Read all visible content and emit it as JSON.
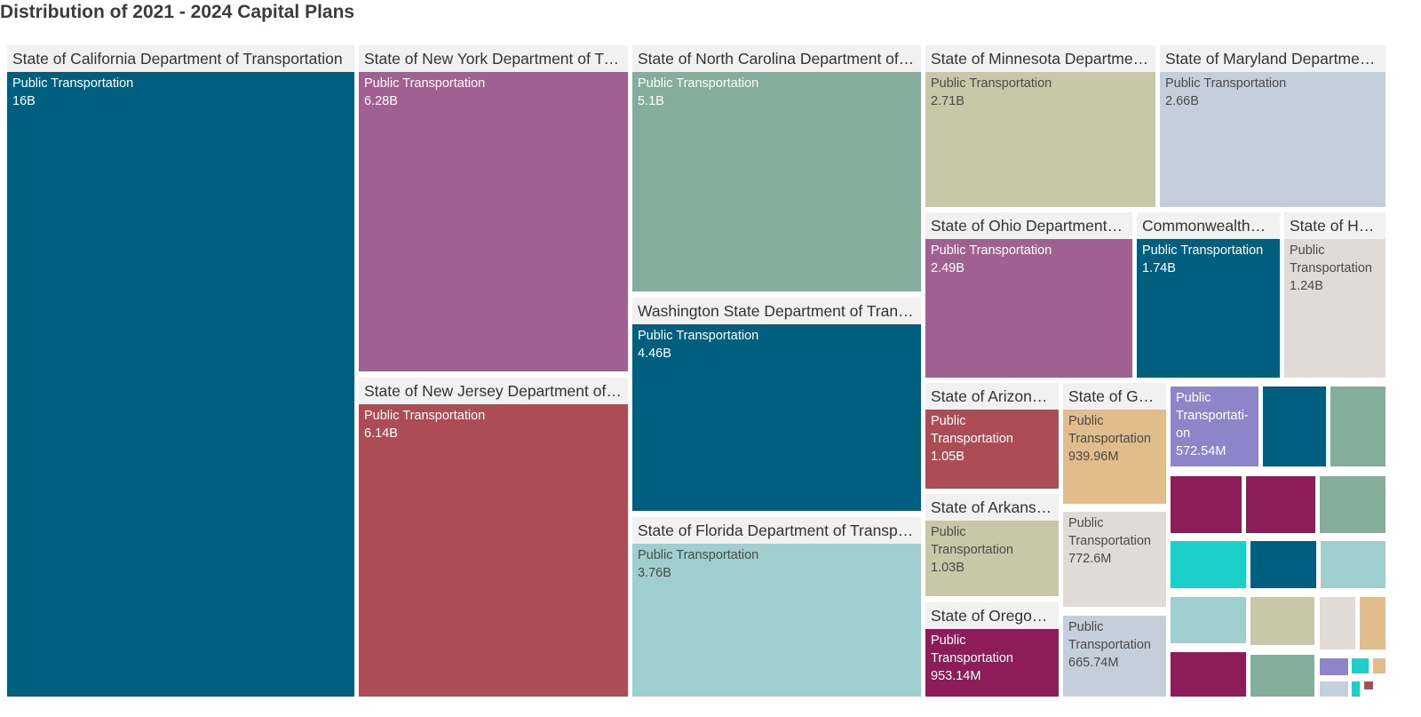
{
  "chart_title": "Distribution of 2021 - 2024 Capital Plans",
  "chart_data": {
    "type": "treemap",
    "title": "Distribution of 2021 - 2024 Capital Plans",
    "groups": [
      {
        "name": "State of California Department of Transportation",
        "header": "State of California Department of Transportation",
        "category": "Public Transportation",
        "value": 16000000000,
        "value_label": "16B",
        "color": "#005f7f",
        "text_color": "#ffffff"
      },
      {
        "name": "State of New York Department of Transportation",
        "header": "State of New York Department of Tr…",
        "category": "Public Transportation",
        "value": 6280000000,
        "value_label": "6.28B",
        "color": "#a06192",
        "text_color": "#ffffff"
      },
      {
        "name": "State of New Jersey Department of Transportation",
        "header": "State of New Jersey Department of…",
        "category": "Public Transportation",
        "value": 6140000000,
        "value_label": "6.14B",
        "color": "#ac4d56",
        "text_color": "#ffffff"
      },
      {
        "name": "State of North Carolina Department of Transportation",
        "header": "State of North Carolina Department of…",
        "category": "Public Transportation",
        "value": 5100000000,
        "value_label": "5.1B",
        "color": "#84ae9b",
        "text_color": "#ffffff"
      },
      {
        "name": "Washington State Department of Transportation",
        "header": "Washington State Department of Tran…",
        "category": "Public Transportation",
        "value": 4460000000,
        "value_label": "4.46B",
        "color": "#005f7f",
        "text_color": "#ffffff"
      },
      {
        "name": "State of Florida Department of Transportation",
        "header": "State of Florida Department of Transp…",
        "category": "Public Transportation",
        "value": 3760000000,
        "value_label": "3.76B",
        "color": "#9ecfce",
        "text_color": "#4a4a4a"
      },
      {
        "name": "State of Minnesota Department of Transportation",
        "header": "State of Minnesota Departme…",
        "category": "Public Transportation",
        "value": 2710000000,
        "value_label": "2.71B",
        "color": "#c8c8a8",
        "text_color": "#4a4a4a"
      },
      {
        "name": "State of Maryland Department of Transportation",
        "header": "State of Maryland Departme…",
        "category": "Public Transportation",
        "value": 2660000000,
        "value_label": "2.66B",
        "color": "#c4cfdb",
        "text_color": "#4a4a4a"
      },
      {
        "name": "State of Ohio Department of Transportation",
        "header": "State of Ohio Department…",
        "category": "Public Transportation",
        "value": 2490000000,
        "value_label": "2.49B",
        "color": "#a06192",
        "text_color": "#ffffff"
      },
      {
        "name": "Commonwealth",
        "header": "Commonwealth…",
        "category": "Public Transportation",
        "value": 1740000000,
        "value_label": "1.74B",
        "color": "#005f7f",
        "text_color": "#ffffff"
      },
      {
        "name": "State of Ha",
        "header": "State of Ha…",
        "category": "Public\nTransportation",
        "value": 1240000000,
        "value_label": "1.24B",
        "color": "#e1dbd8",
        "text_color": "#4a4a4a"
      },
      {
        "name": "State of Arizona",
        "header": "State of Arizon…",
        "category": "Public\nTransportation",
        "value": 1050000000,
        "value_label": "1.05B",
        "color": "#ac4d56",
        "text_color": "#ffffff"
      },
      {
        "name": "State of Georgia",
        "header": "State of Ge…",
        "category": "Public\nTransportation",
        "value": 939960000,
        "value_label": "939.96M",
        "color": "#e0bd8a",
        "text_color": "#4a4a4a"
      },
      {
        "name": "State of Arkansas",
        "header": "State of Arkans…",
        "category": "Public\nTransportation",
        "value": 1030000000,
        "value_label": "1.03B",
        "color": "#c8c8a8",
        "text_color": "#4a4a4a"
      },
      {
        "name": "State of Oregon",
        "header": "State of Oregon…",
        "category": "Public\nTransportation",
        "value": 953140000,
        "value_label": "953.14M",
        "color": "#8c1d5a",
        "text_color": "#ffffff"
      },
      {
        "name": "",
        "header": "",
        "category": "Public\nTransportation",
        "value": 772600000,
        "value_label": "772.6M",
        "color": "#e1dbd8",
        "text_color": "#4a4a4a"
      },
      {
        "name": "",
        "header": "",
        "category": "Public\nTransportation",
        "value": 665740000,
        "value_label": "665.74M",
        "color": "#c4cfdb",
        "text_color": "#4a4a4a"
      },
      {
        "name": "",
        "header": "",
        "category": "Public\nTransportati-\non",
        "value": 572540000,
        "value_label": "572.54M",
        "color": "#8e85c9",
        "text_color": "#ffffff"
      },
      {
        "name": "",
        "header": "",
        "category": "",
        "value_label": "",
        "color": "#005f7f"
      },
      {
        "name": "",
        "header": "",
        "category": "",
        "value_label": "",
        "color": "#84ae9b"
      },
      {
        "name": "",
        "header": "",
        "category": "",
        "value_label": "",
        "color": "#8c1d5a"
      },
      {
        "name": "",
        "header": "",
        "category": "",
        "value_label": "",
        "color": "#8c1d5a"
      },
      {
        "name": "",
        "header": "",
        "category": "",
        "value_label": "",
        "color": "#84ae9b"
      },
      {
        "name": "",
        "header": "",
        "category": "",
        "value_label": "",
        "color": "#1ad0c8"
      },
      {
        "name": "",
        "header": "",
        "category": "",
        "value_label": "",
        "color": "#005f7f"
      },
      {
        "name": "",
        "header": "",
        "category": "",
        "value_label": "",
        "color": "#9ecfce"
      },
      {
        "name": "",
        "header": "",
        "category": "",
        "value_label": "",
        "color": "#9ecfce"
      },
      {
        "name": "",
        "header": "",
        "category": "",
        "value_label": "",
        "color": "#c8c8a8"
      },
      {
        "name": "",
        "header": "",
        "category": "",
        "value_label": "",
        "color": "#e1dbd8"
      },
      {
        "name": "",
        "header": "",
        "category": "",
        "value_label": "",
        "color": "#e0bd8a"
      },
      {
        "name": "",
        "header": "",
        "category": "",
        "value_label": "",
        "color": "#8c1d5a"
      },
      {
        "name": "",
        "header": "",
        "category": "",
        "value_label": "",
        "color": "#84ae9b"
      },
      {
        "name": "",
        "header": "",
        "category": "",
        "value_label": "",
        "color": "#8e85c9"
      },
      {
        "name": "",
        "header": "",
        "category": "",
        "value_label": "",
        "color": "#1ad0c8"
      },
      {
        "name": "",
        "header": "",
        "category": "",
        "value_label": "",
        "color": "#e0bd8a"
      },
      {
        "name": "",
        "header": "",
        "category": "",
        "value_label": "",
        "color": "#c4cfdb"
      },
      {
        "name": "",
        "header": "",
        "category": "",
        "value_label": "",
        "color": "#1ad0c8"
      },
      {
        "name": "",
        "header": "",
        "category": "",
        "value_label": "",
        "color": "#ac4d56"
      }
    ]
  }
}
